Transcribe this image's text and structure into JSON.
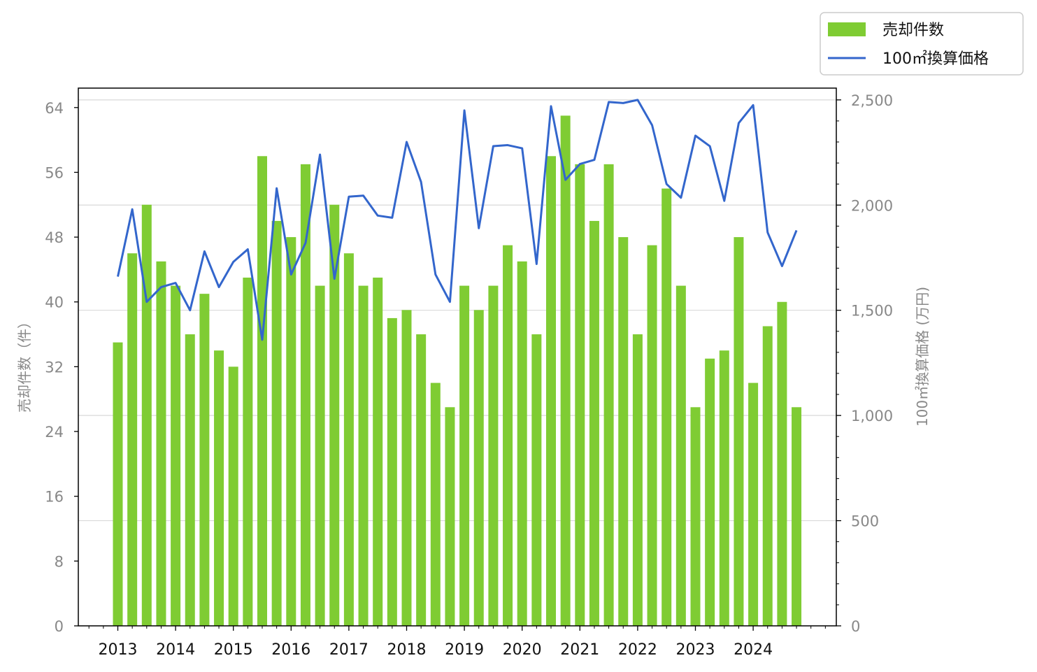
{
  "chart_data": {
    "type": "bar+line",
    "x": [
      "2013-01",
      "2013-04",
      "2013-07",
      "2013-10",
      "2014-01",
      "2014-04",
      "2014-07",
      "2014-10",
      "2015-01",
      "2015-04",
      "2015-07",
      "2015-10",
      "2016-01",
      "2016-04",
      "2016-07",
      "2016-10",
      "2017-01",
      "2017-04",
      "2017-07",
      "2017-10",
      "2018-01",
      "2018-04",
      "2018-07",
      "2018-10",
      "2019-01",
      "2019-04",
      "2019-07",
      "2019-10",
      "2020-01",
      "2020-04",
      "2020-07",
      "2020-10",
      "2021-01",
      "2021-04",
      "2021-07",
      "2021-10",
      "2022-01",
      "2022-04",
      "2022-07",
      "2022-10",
      "2023-01",
      "2023-04",
      "2023-07",
      "2023-10",
      "2024-01",
      "2024-04",
      "2024-07",
      "2024-10"
    ],
    "x_tick_labels": [
      "2013",
      "2014",
      "2015",
      "2016",
      "2017",
      "2018",
      "2019",
      "2020",
      "2021",
      "2022",
      "2023",
      "2024"
    ],
    "series": [
      {
        "name": "売却件数",
        "type": "bar",
        "axis": "left",
        "color": "#7fcc33",
        "values": [
          35,
          46,
          52,
          45,
          42,
          36,
          41,
          34,
          32,
          43,
          58,
          50,
          48,
          57,
          42,
          52,
          46,
          42,
          43,
          38,
          39,
          36,
          30,
          27,
          42,
          39,
          42,
          47,
          45,
          36,
          58,
          63,
          57,
          50,
          57,
          48,
          36,
          47,
          54,
          42,
          27,
          33,
          34,
          48,
          30,
          37,
          40,
          27
        ]
      },
      {
        "name": "100㎡換算価格",
        "type": "line",
        "axis": "right",
        "color": "#3366cc",
        "values": [
          1660,
          1980,
          1540,
          1610,
          1630,
          1500,
          1780,
          1610,
          1730,
          1790,
          1360,
          2080,
          1670,
          1820,
          2240,
          1650,
          2040,
          2045,
          1950,
          1940,
          2300,
          2110,
          1670,
          1540,
          2450,
          1890,
          2280,
          2285,
          2270,
          1720,
          2470,
          2120,
          2195,
          2215,
          2490,
          2485,
          2500,
          2380,
          2100,
          2035,
          2330,
          2280,
          2020,
          2390,
          2475,
          1870,
          1710,
          1880
        ]
      }
    ],
    "ylabel_left": "売却件数（件）",
    "ylabel_right": "100㎡換算価格 (万円)",
    "ylim_left": [
      0,
      66.4
    ],
    "ylim_right": [
      0,
      2556
    ],
    "yticks_left": [
      0,
      8,
      16,
      24,
      32,
      40,
      48,
      56,
      64
    ],
    "yticks_right": [
      0,
      500,
      1000,
      1500,
      2000,
      2500
    ],
    "ytick_labels_right": [
      "0",
      "500",
      "1,000",
      "1,500",
      "2,000",
      "2,500"
    ],
    "grid": "horizontal (right axis)",
    "legend_position": "top-right",
    "legend": [
      "売却件数",
      "100㎡換算価格"
    ]
  }
}
